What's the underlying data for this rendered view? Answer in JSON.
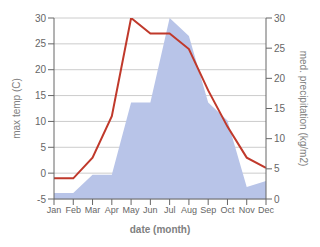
{
  "chart_data": {
    "type": "line",
    "categories": [
      "Jan",
      "Feb",
      "Mar",
      "Apr",
      "May",
      "Jun",
      "Jul",
      "Aug",
      "Sep",
      "Oct",
      "Nov",
      "Dec"
    ],
    "series": [
      {
        "type": "line",
        "color": "#c0392b",
        "values": [
          -1,
          -1,
          3,
          11,
          30,
          27,
          27,
          24,
          16,
          9,
          3,
          1
        ]
      },
      {
        "type": "area",
        "color": "#b8c4e8",
        "axis": "y2",
        "values": [
          1,
          1,
          4,
          4,
          16,
          16,
          30,
          27,
          16,
          13,
          2,
          3
        ]
      }
    ],
    "xlabel": "date (month)",
    "ylabel": "max temp (C)",
    "y2label": "med. precipitation (kg/m2)",
    "ylim": [
      -5,
      30
    ],
    "yticks": [
      -5,
      0,
      5,
      10,
      15,
      20,
      25,
      30
    ],
    "y2lim": [
      0,
      30
    ],
    "y2ticks": [
      0,
      5,
      10,
      15,
      20,
      25,
      30
    ],
    "grid": true
  }
}
